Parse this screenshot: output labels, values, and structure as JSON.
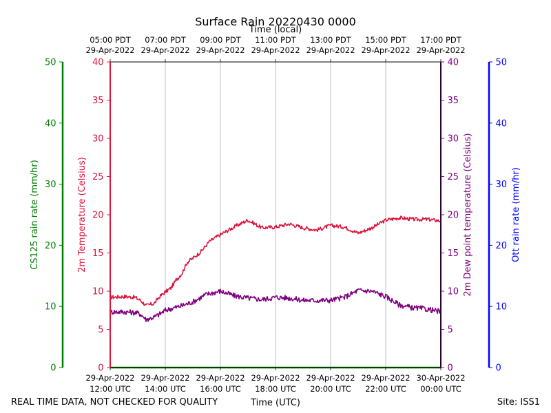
{
  "chart_data": {
    "type": "line",
    "title": "Surface Rain 20220430 0000",
    "top_axis_label": "Time (local)",
    "top_ticks": [
      {
        "line1": "05:00 PDT",
        "line2": "29-Apr-2022"
      },
      {
        "line1": "07:00 PDT",
        "line2": "29-Apr-2022"
      },
      {
        "line1": "09:00 PDT",
        "line2": "29-Apr-2022"
      },
      {
        "line1": "11:00 PDT",
        "line2": "29-Apr-2022"
      },
      {
        "line1": "13:00 PDT",
        "line2": "29-Apr-2022"
      },
      {
        "line1": "15:00 PDT",
        "line2": "29-Apr-2022"
      },
      {
        "line1": "17:00 PDT",
        "line2": "29-Apr-2022"
      }
    ],
    "xlabel": "Time (UTC)",
    "bottom_ticks": [
      {
        "line1": "29-Apr-2022",
        "line2": "12:00 UTC"
      },
      {
        "line1": "29-Apr-2022",
        "line2": "14:00 UTC"
      },
      {
        "line1": "29-Apr-2022",
        "line2": "16:00 UTC"
      },
      {
        "line1": "29-Apr-2022",
        "line2": "18:00 UTC"
      },
      {
        "line1": "29-Apr-2022",
        "line2": "20:00 UTC"
      },
      {
        "line1": "29-Apr-2022",
        "line2": "22:00 UTC"
      },
      {
        "line1": "30-Apr-2022",
        "line2": "00:00 UTC"
      }
    ],
    "x_range_hours": [
      0,
      12
    ],
    "axes": {
      "cs125": {
        "label": "CS125 rain rate (mm/hr)",
        "ylim": [
          0,
          50
        ],
        "ticks": [
          "0",
          "10",
          "20",
          "30",
          "40",
          "50"
        ],
        "color": "#008000"
      },
      "temperature": {
        "label": "2m Temperature (Celsius)",
        "ylim": [
          0,
          40
        ],
        "ticks": [
          "0",
          "5",
          "10",
          "15",
          "20",
          "25",
          "30",
          "35",
          "40"
        ],
        "color": "#dc143c"
      },
      "dewpoint": {
        "label": "2m Dew point temperature (Celsius)",
        "ylim": [
          0,
          40
        ],
        "ticks": [
          "0",
          "5",
          "10",
          "15",
          "20",
          "25",
          "30",
          "35",
          "40"
        ],
        "color": "#800080"
      },
      "ott": {
        "label": "Ott rain rate (mm/hr)",
        "ylim": [
          0,
          50
        ],
        "ticks": [
          "0",
          "10",
          "20",
          "30",
          "40",
          "50"
        ],
        "color": "#0000ff"
      }
    },
    "series": [
      {
        "name": "2m Temperature",
        "axis": "temperature",
        "color": "#dc143c",
        "x": [
          0,
          0.5,
          0.9,
          1.1,
          1.3,
          1.6,
          1.8,
          2.0,
          2.2,
          2.4,
          2.6,
          2.8,
          3.0,
          3.3,
          3.6,
          4.0,
          4.3,
          4.6,
          5.0,
          5.5,
          6.0,
          6.5,
          7.0,
          7.5,
          8.0,
          8.5,
          9.0,
          9.5,
          10.0,
          10.5,
          11.0,
          11.5,
          12.0
        ],
        "values": [
          9.2,
          9.3,
          9.2,
          8.8,
          8.1,
          8.4,
          9.3,
          9.9,
          10.4,
          11.5,
          12.3,
          13.8,
          14.3,
          15.2,
          16.5,
          17.4,
          18.0,
          18.6,
          19.3,
          18.3,
          18.4,
          18.8,
          18.3,
          18.0,
          18.6,
          18.4,
          17.6,
          18.3,
          19.3,
          19.6,
          19.4,
          19.4,
          19.2
        ]
      },
      {
        "name": "2m Dew point temperature",
        "axis": "dewpoint",
        "color": "#800080",
        "x": [
          0,
          0.5,
          0.9,
          1.1,
          1.3,
          1.6,
          1.8,
          2.0,
          2.3,
          2.6,
          3.0,
          3.5,
          4.0,
          4.5,
          5.0,
          5.5,
          6.0,
          6.5,
          7.0,
          7.5,
          8.0,
          8.5,
          9.0,
          9.5,
          10.0,
          10.5,
          11.0,
          11.4,
          11.7,
          12.0
        ],
        "values": [
          7.3,
          7.3,
          7.2,
          7.0,
          6.3,
          6.6,
          7.0,
          7.5,
          7.8,
          8.1,
          8.6,
          9.6,
          10.0,
          9.4,
          9.1,
          8.9,
          9.2,
          9.1,
          8.8,
          8.8,
          8.8,
          9.2,
          10.1,
          10.0,
          9.3,
          8.2,
          7.8,
          7.7,
          7.5,
          7.3
        ]
      },
      {
        "name": "CS125 rain rate",
        "axis": "cs125",
        "color": "#008000",
        "x": [
          0,
          12
        ],
        "values": [
          0,
          0
        ]
      }
    ],
    "footer_left": "REAL TIME DATA, NOT CHECKED FOR QUALITY",
    "footer_right": "Site: ISS1"
  }
}
